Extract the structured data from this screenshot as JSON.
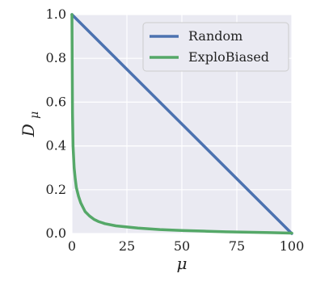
{
  "chart_data": {
    "type": "line",
    "xlabel": "μ",
    "ylabel_main": "D",
    "ylabel_sub": "μ",
    "xlim": [
      0,
      100
    ],
    "ylim": [
      0,
      1
    ],
    "x_ticks": [
      0,
      25,
      50,
      75,
      100
    ],
    "x_tick_labels": [
      "0",
      "25",
      "50",
      "75",
      "100"
    ],
    "y_ticks": [
      0,
      0.2,
      0.4,
      0.6,
      0.8,
      1.0
    ],
    "y_tick_labels": [
      "0.0",
      "0.2",
      "0.4",
      "0.6",
      "0.8",
      "1.0"
    ],
    "grid": true,
    "background": "#EAEAF2",
    "legend_position": "top-right",
    "series": [
      {
        "name": "Random",
        "color": "#4C72B0",
        "x": [
          0,
          100
        ],
        "y": [
          1.0,
          0.0
        ]
      },
      {
        "name": "ExploBiased",
        "color": "#55A868",
        "x": [
          0,
          0.25,
          0.5,
          1,
          1.5,
          2,
          3,
          4,
          5,
          6,
          8,
          10,
          12,
          15,
          20,
          25,
          30,
          40,
          50,
          60,
          70,
          80,
          90,
          100
        ],
        "y": [
          1.0,
          0.55,
          0.4,
          0.3,
          0.25,
          0.21,
          0.17,
          0.14,
          0.12,
          0.1,
          0.08,
          0.065,
          0.055,
          0.045,
          0.035,
          0.03,
          0.025,
          0.018,
          0.014,
          0.011,
          0.008,
          0.006,
          0.004,
          0.002
        ]
      }
    ]
  }
}
